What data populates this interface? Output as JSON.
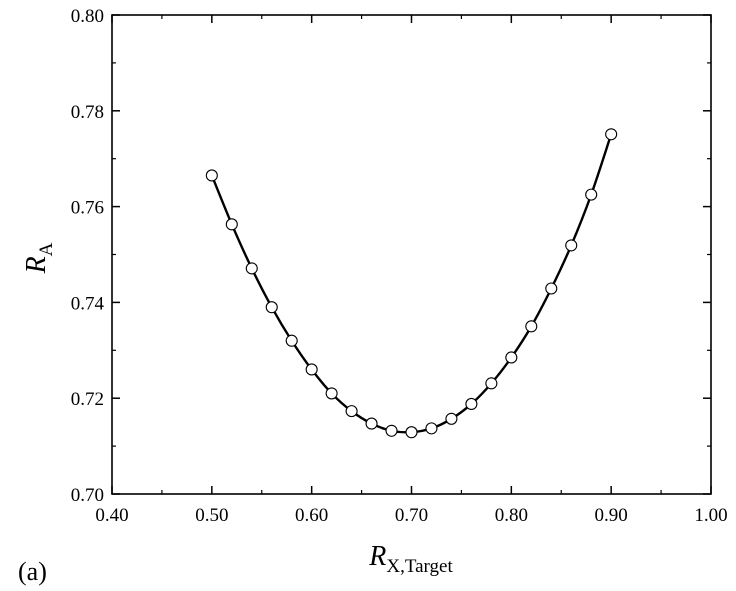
{
  "panel_label": "(a)",
  "chart_data": {
    "type": "line",
    "title": "",
    "xlabel": {
      "main": "R",
      "sub": "X,Target"
    },
    "ylabel": {
      "main": "R",
      "sub": "A"
    },
    "xlim": [
      0.4,
      1.0
    ],
    "ylim": [
      0.7,
      0.8
    ],
    "x_ticks": [
      "0.40",
      "0.50",
      "0.60",
      "0.70",
      "0.80",
      "0.90",
      "1.00"
    ],
    "y_ticks": [
      "0.70",
      "0.72",
      "0.74",
      "0.76",
      "0.78",
      "0.80"
    ],
    "grid": false,
    "legend": "none",
    "series": [
      {
        "marker": "open-circle",
        "line": "smooth-solid",
        "color": "#000000",
        "x": [
          0.5,
          0.52,
          0.54,
          0.56,
          0.58,
          0.6,
          0.62,
          0.64,
          0.66,
          0.68,
          0.7,
          0.72,
          0.74,
          0.76,
          0.78,
          0.8,
          0.82,
          0.84,
          0.86,
          0.88,
          0.9
        ],
        "y": [
          0.7665,
          0.7563,
          0.7471,
          0.739,
          0.732,
          0.726,
          0.721,
          0.7173,
          0.7147,
          0.7132,
          0.7129,
          0.7137,
          0.7157,
          0.7188,
          0.7231,
          0.7285,
          0.735,
          0.7429,
          0.7519,
          0.7625,
          0.7751
        ]
      }
    ]
  }
}
